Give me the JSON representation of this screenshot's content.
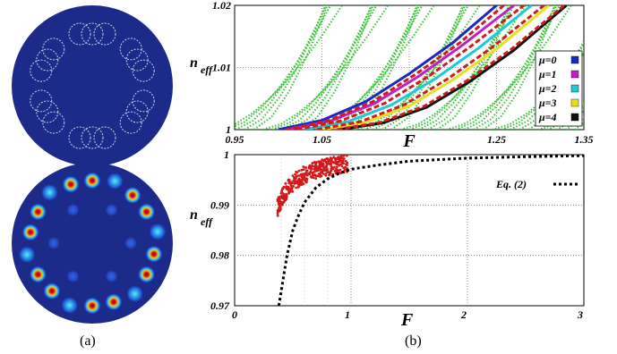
{
  "colors": {
    "background": "#1c2a8a",
    "ring": "#c9d2ec",
    "mode_core": "#c81616",
    "green_modes": "#35c435",
    "model_curve": "#000000",
    "measured": "#d11a1a",
    "mu0": "#1a28c8",
    "mu1": "#c020c8",
    "mu2": "#20c8d8",
    "mu3": "#e8e020",
    "mu4": "#101010"
  },
  "panels": {
    "a_label": "(a)",
    "b_label": "(b)"
  },
  "chart_data": [
    {
      "type": "scatter",
      "panel": "b-top",
      "xlabel": "F",
      "ylabel": "n",
      "ylabel_sub": "eff",
      "xlim": [
        0.95,
        1.35
      ],
      "ylim": [
        1.0,
        1.02
      ],
      "xticks": [
        "0.95",
        "1.05",
        "F",
        "1.25",
        "1.35"
      ],
      "yticks": [
        "1",
        "1.01",
        "1.02"
      ],
      "grid": true,
      "legend_position": "right",
      "series": [
        {
          "name": "μ=0",
          "color": "#1a28c8",
          "x": [
            1.0,
            1.05,
            1.1,
            1.15,
            1.2,
            1.25
          ],
          "y": [
            1.0,
            1.0015,
            1.0045,
            1.009,
            1.014,
            1.02
          ]
        },
        {
          "name": "μ=1",
          "color": "#c020c8",
          "x": [
            1.01,
            1.06,
            1.11,
            1.16,
            1.21,
            1.27
          ],
          "y": [
            1.0,
            1.0014,
            1.0042,
            1.0085,
            1.0135,
            1.02
          ]
        },
        {
          "name": "μ=2",
          "color": "#20c8d8",
          "x": [
            1.03,
            1.08,
            1.13,
            1.18,
            1.23,
            1.29
          ],
          "y": [
            1.0,
            1.0013,
            1.004,
            1.0082,
            1.0132,
            1.02
          ]
        },
        {
          "name": "μ=3",
          "color": "#e8e020",
          "x": [
            1.05,
            1.1,
            1.15,
            1.2,
            1.25,
            1.31
          ],
          "y": [
            1.0,
            1.0012,
            1.0038,
            1.008,
            1.013,
            1.02
          ]
        },
        {
          "name": "μ=4",
          "color": "#101010",
          "x": [
            1.07,
            1.12,
            1.17,
            1.22,
            1.27,
            1.33
          ],
          "y": [
            1.0,
            1.0011,
            1.0036,
            1.0078,
            1.0128,
            1.02
          ]
        }
      ]
    },
    {
      "type": "scatter",
      "panel": "b-bottom",
      "xlabel": "F",
      "ylabel": "n",
      "ylabel_sub": "eff",
      "xlim": [
        0,
        3
      ],
      "ylim": [
        0.97,
        1.0
      ],
      "xticks": [
        "0",
        "1",
        "2",
        "3"
      ],
      "yticks": [
        "0.97",
        "0.98",
        "0.99",
        "1"
      ],
      "grid": true,
      "legend_position": "top-right",
      "series": [
        {
          "name": "Eq. (2)",
          "color": "#000000",
          "x": [
            0.38,
            0.45,
            0.5,
            0.55,
            0.6,
            0.7,
            0.8,
            0.9,
            1.0,
            1.25,
            1.5,
            2.0,
            2.5,
            3.0
          ],
          "y": [
            0.97,
            0.98,
            0.985,
            0.988,
            0.9905,
            0.9935,
            0.9952,
            0.9963,
            0.9971,
            0.998,
            0.9987,
            0.9993,
            0.9996,
            0.9998
          ]
        }
      ]
    }
  ]
}
